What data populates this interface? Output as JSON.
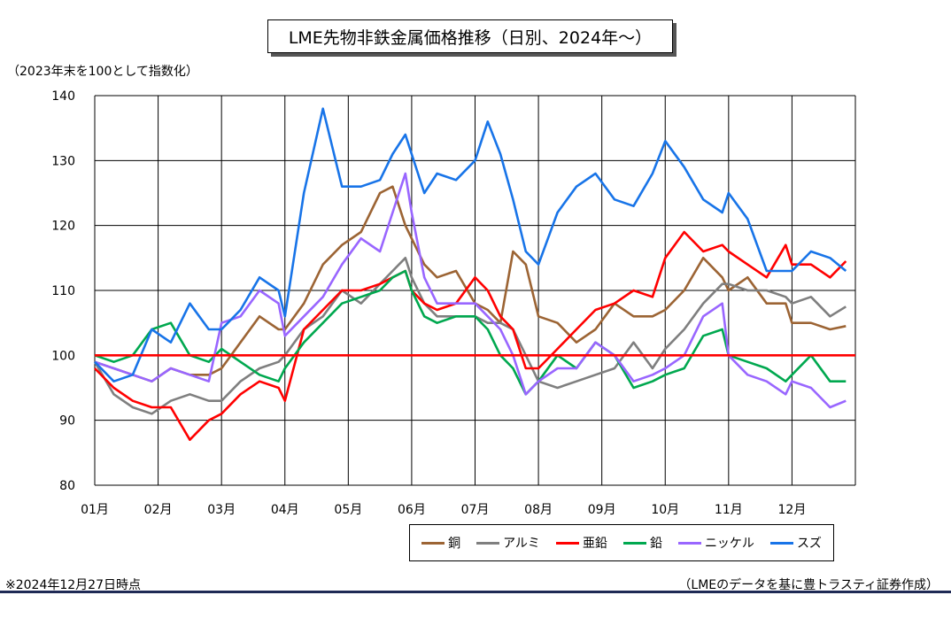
{
  "header": {
    "title": "LME先物非鉄金属価格推移（日別、2024年～）",
    "unit_note": "（2023年末を100として指数化）"
  },
  "footer": {
    "left_note": "※2024年12月27日時点",
    "right_note": "（LMEのデータを基に豊トラスティ証券作成）"
  },
  "chart_data": {
    "type": "line",
    "title": "LME先物非鉄金属価格推移（日別、2024年～）",
    "ylabel": "（2023年末を100として指数化）",
    "xlabel": "",
    "ylim": [
      80,
      140
    ],
    "yticks": [
      80,
      90,
      100,
      110,
      120,
      130,
      140
    ],
    "xlim": [
      0,
      12
    ],
    "month_labels": [
      "01月",
      "02月",
      "03月",
      "04月",
      "05月",
      "06月",
      "07月",
      "08月",
      "09月",
      "10月",
      "11月",
      "12月"
    ],
    "grid": true,
    "legend_position": "bottom-right",
    "reference_line": {
      "y": 100,
      "color": "#ff0000"
    },
    "series": [
      {
        "name": "銅",
        "color": "#9c6434",
        "x": [
          0,
          0.3,
          0.6,
          0.9,
          1.2,
          1.5,
          1.8,
          2.0,
          2.3,
          2.6,
          2.9,
          3.0,
          3.3,
          3.6,
          3.9,
          4.2,
          4.5,
          4.7,
          4.9,
          5.0,
          5.2,
          5.4,
          5.7,
          6.0,
          6.2,
          6.4,
          6.6,
          6.8,
          7.0,
          7.3,
          7.6,
          7.9,
          8.2,
          8.5,
          8.8,
          9.0,
          9.3,
          9.6,
          9.9,
          10.0,
          10.3,
          10.6,
          10.9,
          11.0,
          11.3,
          11.6,
          11.85
        ],
        "y": [
          99,
          98,
          97,
          96,
          98,
          97,
          97,
          98,
          102,
          106,
          104,
          104,
          108,
          114,
          117,
          119,
          125,
          126,
          120,
          118,
          114,
          112,
          113,
          108,
          107,
          105,
          116,
          114,
          106,
          105,
          102,
          104,
          108,
          106,
          106,
          107,
          110,
          115,
          112,
          110,
          112,
          108,
          108,
          105,
          105,
          104,
          104.5
        ]
      },
      {
        "name": "アルミ",
        "color": "#7f7f7f",
        "x": [
          0,
          0.3,
          0.6,
          0.9,
          1.2,
          1.5,
          1.8,
          2.0,
          2.3,
          2.6,
          2.9,
          3.0,
          3.3,
          3.6,
          3.9,
          4.2,
          4.5,
          4.7,
          4.9,
          5.0,
          5.2,
          5.4,
          5.7,
          6.0,
          6.2,
          6.4,
          6.6,
          6.8,
          7.0,
          7.3,
          7.6,
          7.9,
          8.2,
          8.5,
          8.8,
          9.0,
          9.3,
          9.6,
          9.9,
          10.0,
          10.3,
          10.6,
          10.9,
          11.0,
          11.3,
          11.6,
          11.85
        ],
        "y": [
          99,
          94,
          92,
          91,
          93,
          94,
          93,
          93,
          96,
          98,
          99,
          100,
          104,
          106,
          110,
          108,
          111,
          113,
          115,
          112,
          108,
          106,
          106,
          106,
          105,
          105,
          104,
          100,
          96,
          95,
          96,
          97,
          98,
          102,
          98,
          101,
          104,
          108,
          111,
          111,
          110,
          110,
          109,
          108,
          109,
          106,
          107.5
        ]
      },
      {
        "name": "亜鉛",
        "color": "#ff0000",
        "x": [
          0,
          0.3,
          0.6,
          0.9,
          1.2,
          1.5,
          1.8,
          2.0,
          2.3,
          2.6,
          2.9,
          3.0,
          3.3,
          3.6,
          3.9,
          4.2,
          4.5,
          4.7,
          4.9,
          5.0,
          5.2,
          5.4,
          5.7,
          6.0,
          6.2,
          6.4,
          6.6,
          6.8,
          7.0,
          7.3,
          7.6,
          7.9,
          8.2,
          8.5,
          8.8,
          9.0,
          9.3,
          9.6,
          9.9,
          10.0,
          10.3,
          10.6,
          10.9,
          11.0,
          11.3,
          11.6,
          11.85
        ],
        "y": [
          98,
          95,
          93,
          92,
          92,
          87,
          90,
          91,
          94,
          96,
          95,
          93,
          104,
          107,
          110,
          110,
          111,
          112,
          113,
          110,
          108,
          107,
          108,
          112,
          110,
          106,
          104,
          98,
          98,
          101,
          104,
          107,
          108,
          110,
          109,
          115,
          119,
          116,
          117,
          116,
          114,
          112,
          117,
          114,
          114,
          112,
          114.5
        ]
      },
      {
        "name": "鉛",
        "color": "#00a84f",
        "x": [
          0,
          0.3,
          0.6,
          0.9,
          1.2,
          1.5,
          1.8,
          2.0,
          2.3,
          2.6,
          2.9,
          3.0,
          3.3,
          3.6,
          3.9,
          4.2,
          4.5,
          4.7,
          4.9,
          5.0,
          5.2,
          5.4,
          5.7,
          6.0,
          6.2,
          6.4,
          6.6,
          6.8,
          7.0,
          7.3,
          7.6,
          7.9,
          8.2,
          8.5,
          8.8,
          9.0,
          9.3,
          9.6,
          9.9,
          10.0,
          10.3,
          10.6,
          10.9,
          11.0,
          11.3,
          11.6,
          11.85
        ],
        "y": [
          100,
          99,
          100,
          104,
          105,
          100,
          99,
          101,
          99,
          97,
          96,
          98,
          102,
          105,
          108,
          109,
          110,
          112,
          113,
          110,
          106,
          105,
          106,
          106,
          104,
          100,
          98,
          94,
          96,
          100,
          98,
          102,
          100,
          95,
          96,
          97,
          98,
          103,
          104,
          100,
          99,
          98,
          96,
          97,
          100,
          96,
          96
        ]
      },
      {
        "name": "ニッケル",
        "color": "#9966ff",
        "x": [
          0,
          0.3,
          0.6,
          0.9,
          1.2,
          1.5,
          1.8,
          2.0,
          2.3,
          2.6,
          2.9,
          3.0,
          3.3,
          3.6,
          3.9,
          4.2,
          4.5,
          4.7,
          4.9,
          5.0,
          5.2,
          5.4,
          5.7,
          6.0,
          6.2,
          6.4,
          6.6,
          6.8,
          7.0,
          7.3,
          7.6,
          7.9,
          8.2,
          8.5,
          8.8,
          9.0,
          9.3,
          9.6,
          9.9,
          10.0,
          10.3,
          10.6,
          10.9,
          11.0,
          11.3,
          11.6,
          11.85
        ],
        "y": [
          99,
          98,
          97,
          96,
          98,
          97,
          96,
          105,
          106,
          110,
          108,
          103,
          106,
          109,
          114,
          118,
          116,
          122,
          128,
          122,
          112,
          108,
          108,
          108,
          106,
          104,
          100,
          94,
          96,
          98,
          98,
          102,
          100,
          96,
          97,
          98,
          100,
          106,
          108,
          100,
          97,
          96,
          94,
          96,
          95,
          92,
          93
        ]
      },
      {
        "name": "スズ",
        "color": "#1874e8",
        "x": [
          0,
          0.3,
          0.6,
          0.9,
          1.2,
          1.5,
          1.8,
          2.0,
          2.3,
          2.6,
          2.9,
          3.0,
          3.3,
          3.6,
          3.9,
          4.2,
          4.5,
          4.7,
          4.9,
          5.0,
          5.2,
          5.4,
          5.7,
          6.0,
          6.2,
          6.4,
          6.6,
          6.8,
          7.0,
          7.3,
          7.6,
          7.9,
          8.2,
          8.5,
          8.8,
          9.0,
          9.3,
          9.6,
          9.9,
          10.0,
          10.3,
          10.6,
          10.9,
          11.0,
          11.3,
          11.6,
          11.85
        ],
        "y": [
          99,
          96,
          97,
          104,
          102,
          108,
          104,
          104,
          107,
          112,
          110,
          106,
          125,
          138,
          126,
          126,
          127,
          131,
          134,
          131,
          125,
          128,
          127,
          130,
          136,
          131,
          124,
          116,
          114,
          122,
          126,
          128,
          124,
          123,
          128,
          133,
          129,
          124,
          122,
          125,
          121,
          113,
          113,
          113,
          116,
          115,
          113
        ]
      }
    ]
  }
}
